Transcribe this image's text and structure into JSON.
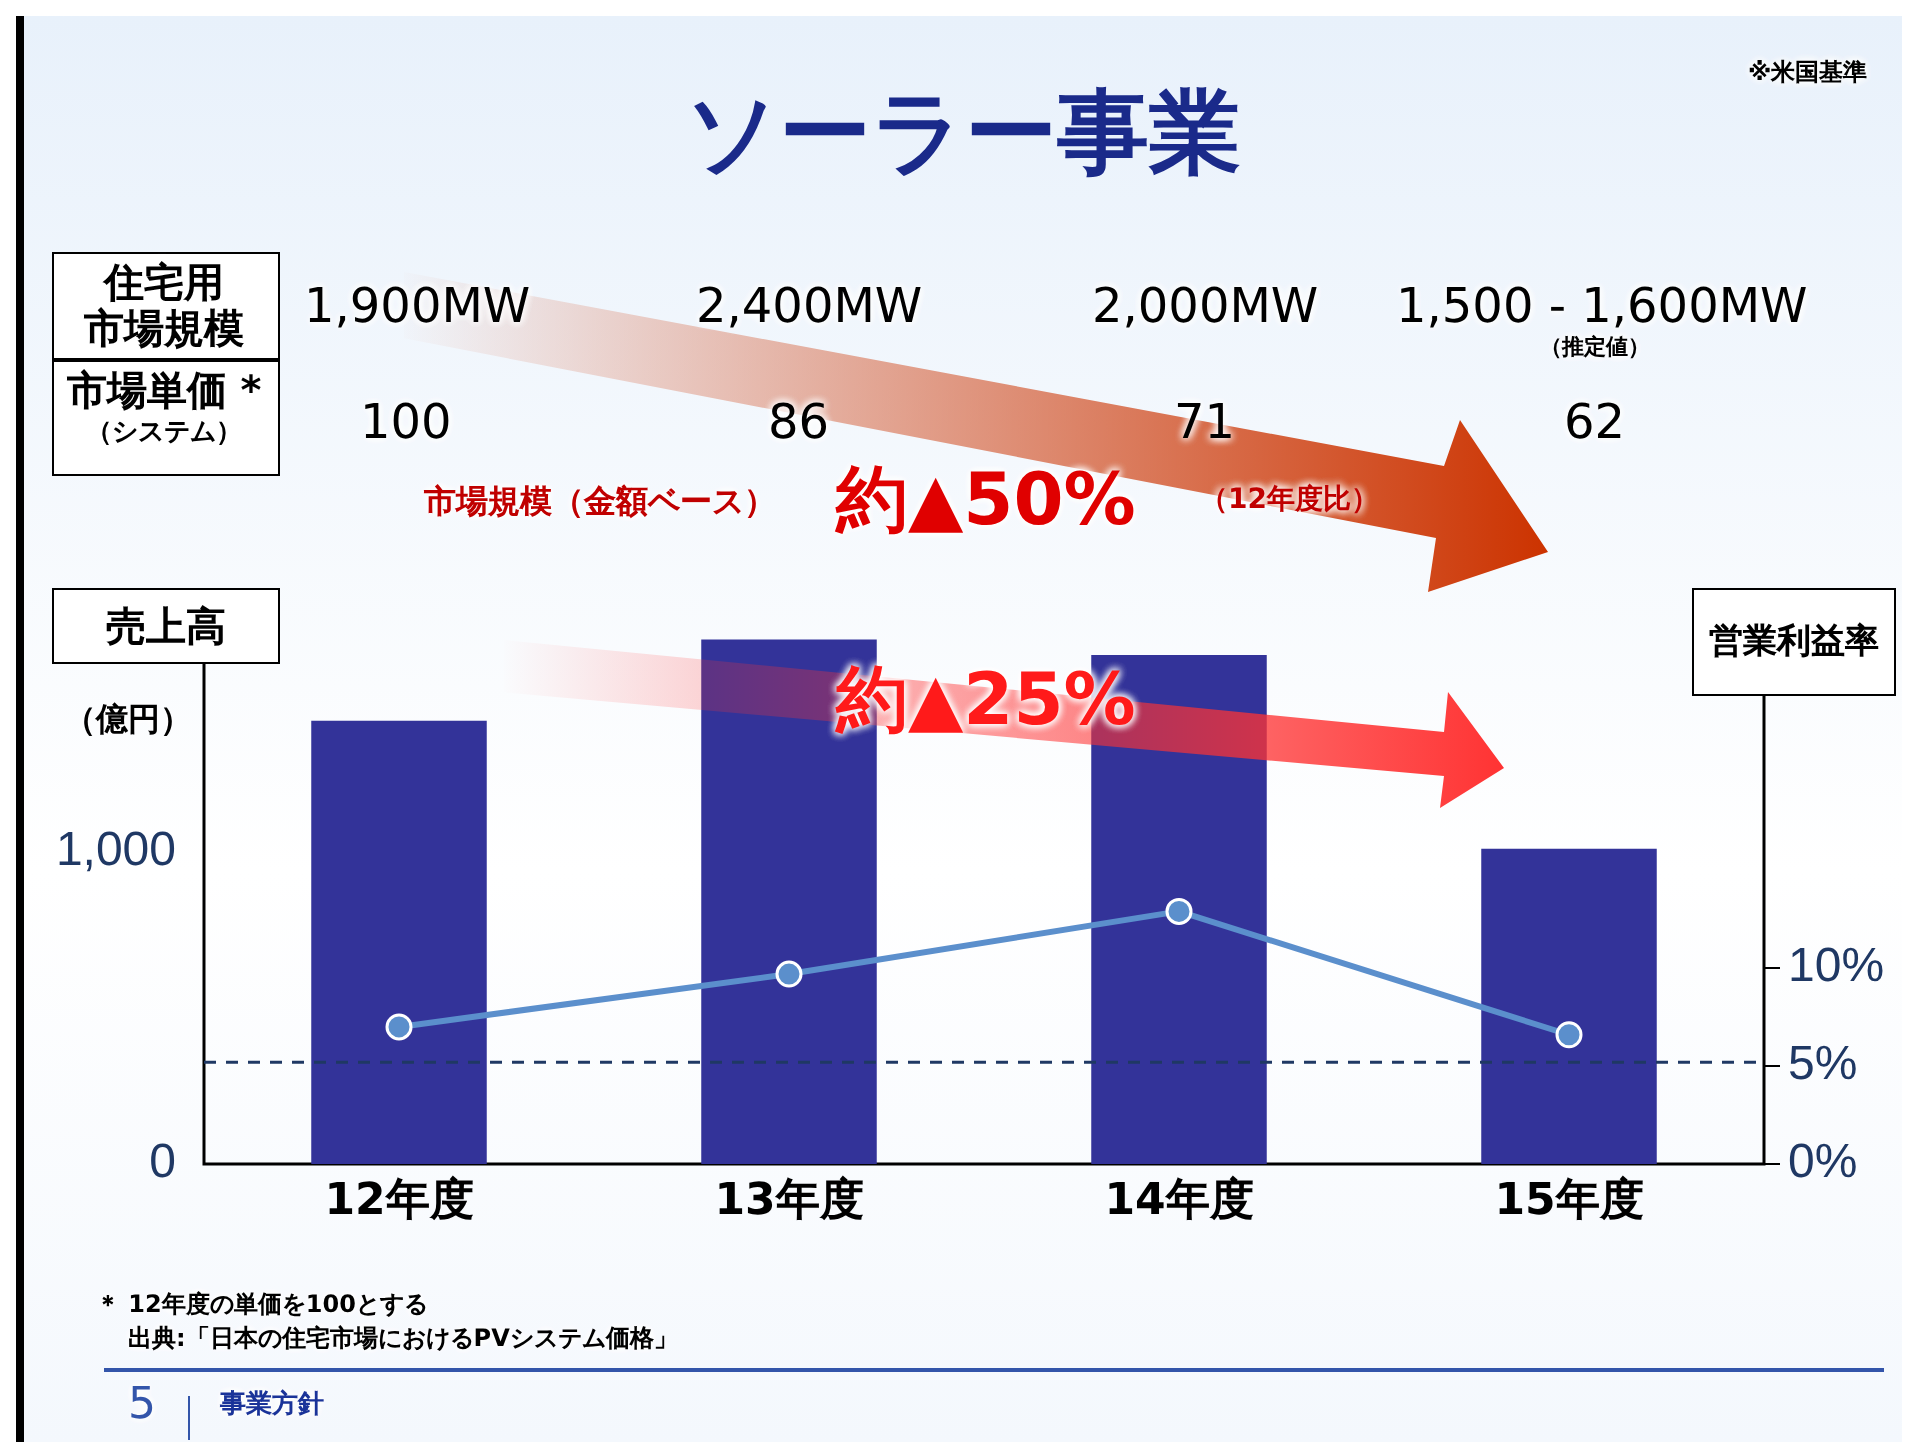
{
  "chart_data": {
    "type": "bar",
    "title": "ソーラー事業",
    "ylabel": "売上高",
    "y2label": "営業利益率",
    "categories": [
      "12年度",
      "13年度",
      "14年度",
      "15年度"
    ],
    "series": [
      {
        "color": "#333399",
        "values": [
          1420,
          1680,
          1630,
          1010
        ]
      },
      {
        "type": "line",
        "axis": "y2",
        "color": "#5b8fcc",
        "marker": "circle",
        "values": [
          7.0,
          9.7,
          12.9,
          6.6
        ]
      }
    ],
    "ylim": [
      0,
      1800
    ],
    "yticks": [
      0,
      {
        "value": 1000,
        "label": "1,000"
      }
    ],
    "y2lim": [
      0,
      28.7
    ],
    "y2ticks": [
      {
        "value": 0,
        "label": "0%"
      },
      {
        "value": 5,
        "label": "5%"
      },
      {
        "value": 10,
        "label": "10%"
      }
    ],
    "ref_lines": [
      {
        "axis": "y2",
        "value": 5.2,
        "color": "#1f3864",
        "line_style": "dashed"
      }
    ],
    "grid": false,
    "legend": false,
    "annotations": [
      "※米国基準",
      "住宅用",
      "市場規模",
      "1,900MW",
      "2,400MW",
      "2,000MW",
      "1,500 - 1,600MW",
      "（推定値）",
      "市場単価 *",
      "（システム）",
      "100",
      "86",
      "71",
      "62",
      "市場規模（金額ベース）",
      "約▲50%",
      "（12年度比）",
      "約▲25%",
      "（億円）",
      "＊ 12年度の単価を100とする",
      "出典:「日本の住宅市場におけるPVシステム価格」",
      "5",
      "事業方針"
    ]
  }
}
